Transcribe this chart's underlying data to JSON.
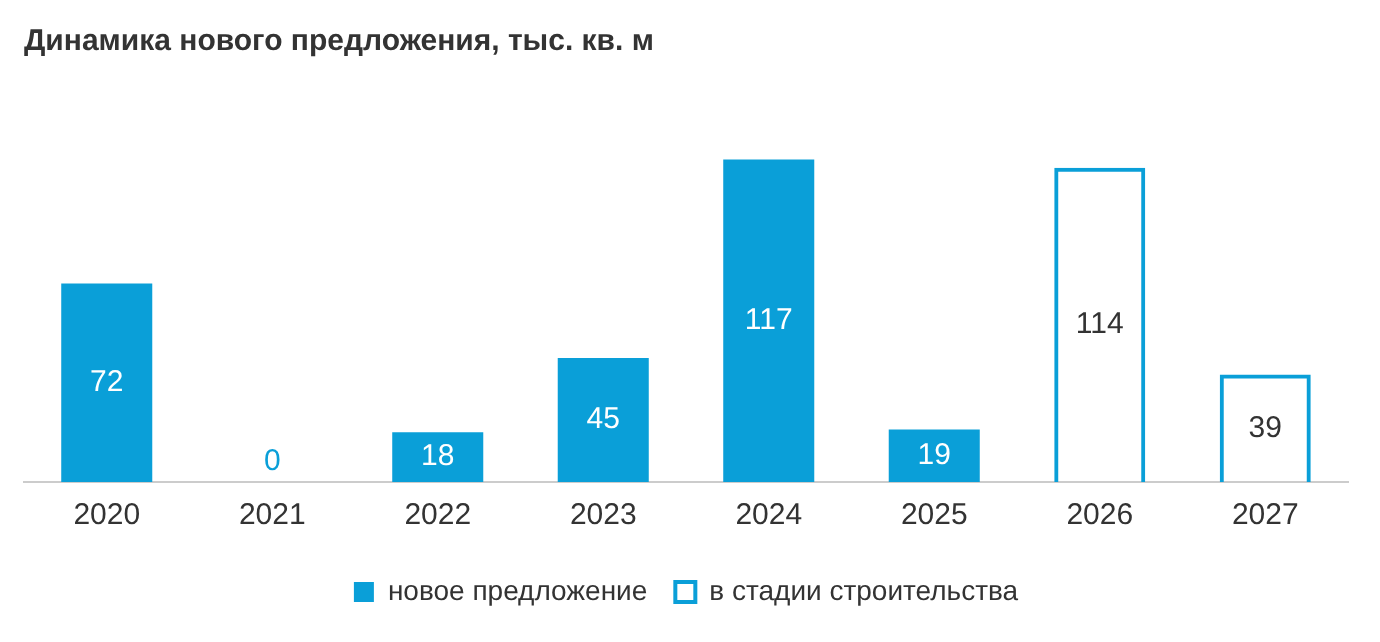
{
  "chart_data": {
    "type": "bar",
    "title": "Динамика нового предложения, тыс. кв. м",
    "categories": [
      "2020",
      "2021",
      "2022",
      "2023",
      "2024",
      "2025",
      "2026",
      "2027"
    ],
    "series": [
      {
        "name": "новое предложение",
        "color": "#0a9fd8",
        "values": [
          72,
          0,
          18,
          45,
          117,
          19,
          null,
          null
        ]
      },
      {
        "name": "в стадии строительства",
        "color": "#0a9fd8",
        "values": [
          null,
          null,
          null,
          null,
          null,
          null,
          114,
          39
        ]
      }
    ],
    "data_labels": true,
    "tick_labels": "x",
    "grid": false,
    "legend": "bottom"
  }
}
